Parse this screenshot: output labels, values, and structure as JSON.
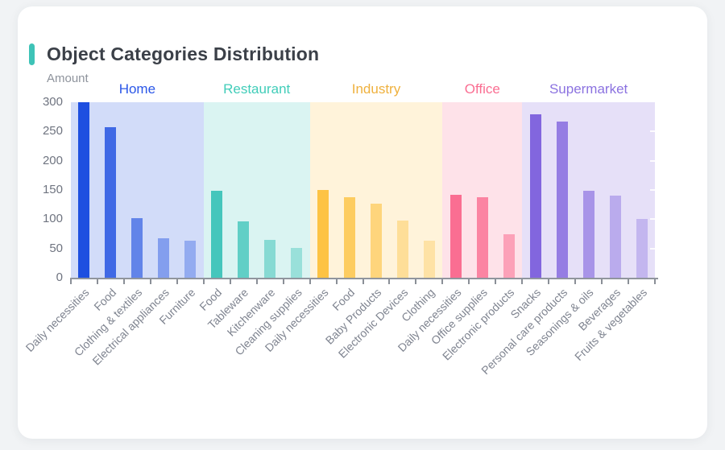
{
  "page": {
    "title_accent_color": "#3EC3B7"
  },
  "chart_data": {
    "type": "bar",
    "title": "Object Categories Distribution",
    "ylabel": "Amount",
    "xlabel": "",
    "ylim": [
      0,
      300
    ],
    "yticks": [
      0,
      50,
      100,
      150,
      200,
      250,
      300
    ],
    "grid": false,
    "legend_position": "none",
    "group_band_tint": 0.2,
    "opacity_ramps": {
      "3": [
        1,
        0.85,
        0.65
      ],
      "4": [
        1,
        0.85,
        0.65,
        0.55
      ],
      "5": [
        1,
        0.85,
        0.7,
        0.55,
        0.48
      ]
    },
    "groups": [
      {
        "name": "Home",
        "color": "#1E4FE0",
        "label_color": "#2B57E8",
        "categories": [
          "Daily necessities",
          "Food",
          "Clothing & textiles",
          "Electrical appliances",
          "Furniture"
        ],
        "values": [
          300,
          257,
          102,
          68,
          63
        ]
      },
      {
        "name": "Restaurant",
        "color": "#45C6BC",
        "label_color": "#41CDB9",
        "categories": [
          "Food",
          "Tableware",
          "Kitchenware",
          "Cleaning supplies"
        ],
        "values": [
          148,
          97,
          65,
          51
        ]
      },
      {
        "name": "Industry",
        "color": "#FDC344",
        "label_color": "#EFB13E",
        "categories": [
          "Daily necessities",
          "Food",
          "Baby Products",
          "Electronic Devices",
          "Clothing"
        ],
        "values": [
          150,
          138,
          126,
          98,
          63
        ]
      },
      {
        "name": "Office",
        "color": "#FA6E92",
        "label_color": "#FA6E92",
        "categories": [
          "Daily necessities",
          "Office supplies",
          "Electronic products"
        ],
        "values": [
          142,
          138,
          75
        ]
      },
      {
        "name": "Supermarket",
        "color": "#8266DE",
        "label_color": "#8B72E0",
        "categories": [
          "Snacks",
          "Personal care products",
          "Seasonings & oils",
          "Beverages",
          "Fruits & vegetables"
        ],
        "values": [
          280,
          267,
          148,
          140,
          100
        ]
      }
    ]
  }
}
